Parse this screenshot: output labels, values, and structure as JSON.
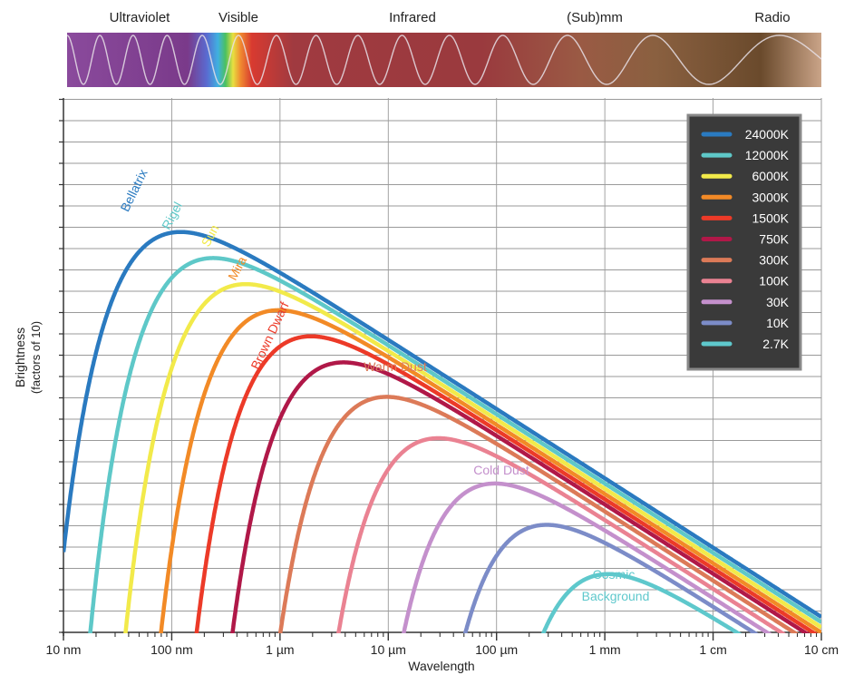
{
  "chart_data": {
    "type": "line",
    "spectrum_bands": [
      "Ultraviolet",
      "Visible",
      "Infrared",
      "(Sub)mm",
      "Radio"
    ],
    "x_axis": {
      "label": "Wavelength",
      "scale": "log",
      "tick_labels": [
        "10 nm",
        "100 nm",
        "1 µm",
        "10 µm",
        "100 µm",
        "1 mm",
        "1 cm",
        "10 cm"
      ],
      "xlim_m": [
        1e-08,
        0.1
      ]
    },
    "y_axis": {
      "label": "Brightness",
      "sublabel": "(factors of 10)",
      "scale": "log"
    },
    "grid": true,
    "legend_position": "top-right",
    "series": [
      {
        "name": "24000K",
        "temperature_K": 24000,
        "label": "Bellatrix",
        "color": "#2a7ac0"
      },
      {
        "name": "12000K",
        "temperature_K": 12000,
        "label": "Rigel",
        "color": "#5ec8c8"
      },
      {
        "name": "6000K",
        "temperature_K": 6000,
        "label": "Sun",
        "color": "#f2ea4a"
      },
      {
        "name": "3000K",
        "temperature_K": 3000,
        "label": "Mira",
        "color": "#f28a26"
      },
      {
        "name": "1500K",
        "temperature_K": 1500,
        "label": "Brown Dwarf",
        "color": "#ec3a28"
      },
      {
        "name": "750K",
        "temperature_K": 750,
        "label": "",
        "color": "#b01848"
      },
      {
        "name": "300K",
        "temperature_K": 300,
        "label": "Warm Dust",
        "color": "#dc7a58"
      },
      {
        "name": "100K",
        "temperature_K": 100,
        "label": "",
        "color": "#ea8292"
      },
      {
        "name": "30K",
        "temperature_K": 30,
        "label": "Cold Dust",
        "color": "#c490cc"
      },
      {
        "name": "10K",
        "temperature_K": 10,
        "label": "",
        "color": "#7c8cc8"
      },
      {
        "name": "2.7K",
        "temperature_K": 2.7,
        "label": "Cosmic Background",
        "color": "#5ec8cc"
      }
    ]
  }
}
